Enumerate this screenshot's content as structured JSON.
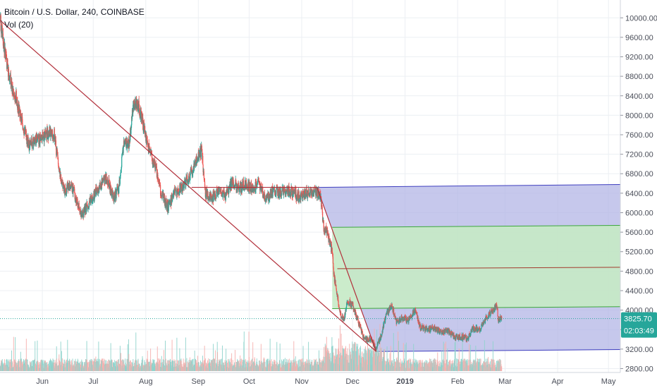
{
  "legend": {
    "symbol_line": "Bitcoin / U.S. Dollar, 240, COINBASE",
    "indicator_line": "Vol (20)"
  },
  "price_label": {
    "value": "3825.70",
    "countdown": "02:03:49",
    "color": "#26a69a"
  },
  "colors": {
    "up": "#26a69a",
    "down": "#ef5350",
    "grid": "#eceff3",
    "trendline": "#b2303b",
    "channel_line": "#3f3fbf",
    "channel_fill": "#b3b6e6",
    "green_zone_fill": "#c5eac5",
    "green_line": "#3ca73c",
    "mid_line": "#a33a2c",
    "vol_up": "#8fd3cc",
    "vol_down": "#f5b0ae"
  },
  "chart_data": {
    "type": "candlestick",
    "title": "Bitcoin / U.S. Dollar, 240, COINBASE",
    "indicator": "Vol (20)",
    "y_axis": {
      "ticks": [
        2800,
        3200,
        3600,
        4000,
        4400,
        4800,
        5200,
        5600,
        6000,
        6400,
        6800,
        7200,
        7600,
        8000,
        8400,
        8800,
        9200,
        9600,
        10000
      ],
      "tick_labels": [
        "2800.00",
        "3200.00",
        "3600.00",
        "4000.00",
        "4400.00",
        "4800.00",
        "5200.00",
        "5600.00",
        "6000.00",
        "6400.00",
        "6800.00",
        "7200.00",
        "7600.00",
        "8000.00",
        "8400.00",
        "8800.00",
        "9200.00",
        "9600.00",
        "10000.00"
      ],
      "range": [
        2720,
        10250
      ]
    },
    "x_axis": {
      "labels": [
        "Jun",
        "Jul",
        "Aug",
        "Sep",
        "Oct",
        "Nov",
        "Dec",
        "2019",
        "Feb",
        "Mar",
        "Apr",
        "May"
      ],
      "label_dates": [
        "2018-06-01",
        "2018-07-01",
        "2018-08-01",
        "2018-09-01",
        "2018-10-01",
        "2018-11-01",
        "2018-12-01",
        "2019-01-01",
        "2019-02-01",
        "2019-03-01",
        "2019-04-01",
        "2019-05-01"
      ],
      "range": [
        "2018-05-07",
        "2019-05-08"
      ]
    },
    "price_path": [
      [
        "2018-05-07",
        9950
      ],
      [
        "2018-05-10",
        9300
      ],
      [
        "2018-05-13",
        8700
      ],
      [
        "2018-05-17",
        8300
      ],
      [
        "2018-05-21",
        7700
      ],
      [
        "2018-05-24",
        7400
      ],
      [
        "2018-05-28",
        7500
      ],
      [
        "2018-06-01",
        7550
      ],
      [
        "2018-06-05",
        7650
      ],
      [
        "2018-06-08",
        7600
      ],
      [
        "2018-06-11",
        6850
      ],
      [
        "2018-06-14",
        6450
      ],
      [
        "2018-06-18",
        6600
      ],
      [
        "2018-06-22",
        6150
      ],
      [
        "2018-06-24",
        5950
      ],
      [
        "2018-06-27",
        6100
      ],
      [
        "2018-07-01",
        6350
      ],
      [
        "2018-07-05",
        6550
      ],
      [
        "2018-07-09",
        6700
      ],
      [
        "2018-07-13",
        6300
      ],
      [
        "2018-07-16",
        6500
      ],
      [
        "2018-07-19",
        7400
      ],
      [
        "2018-07-22",
        7400
      ],
      [
        "2018-07-25",
        8300
      ],
      [
        "2018-07-28",
        8200
      ],
      [
        "2018-07-31",
        7700
      ],
      [
        "2018-08-03",
        7300
      ],
      [
        "2018-08-07",
        6900
      ],
      [
        "2018-08-10",
        6400
      ],
      [
        "2018-08-14",
        6100
      ],
      [
        "2018-08-18",
        6400
      ],
      [
        "2018-08-22",
        6500
      ],
      [
        "2018-08-26",
        6700
      ],
      [
        "2018-08-30",
        7000
      ],
      [
        "2018-09-03",
        7300
      ],
      [
        "2018-09-05",
        6400
      ],
      [
        "2018-09-09",
        6300
      ],
      [
        "2018-09-13",
        6450
      ],
      [
        "2018-09-17",
        6350
      ],
      [
        "2018-09-21",
        6650
      ],
      [
        "2018-09-25",
        6500
      ],
      [
        "2018-09-29",
        6600
      ],
      [
        "2018-10-03",
        6500
      ],
      [
        "2018-10-07",
        6600
      ],
      [
        "2018-10-11",
        6250
      ],
      [
        "2018-10-15",
        6450
      ],
      [
        "2018-10-19",
        6400
      ],
      [
        "2018-10-23",
        6450
      ],
      [
        "2018-10-27",
        6420
      ],
      [
        "2018-10-31",
        6300
      ],
      [
        "2018-11-04",
        6400
      ],
      [
        "2018-11-08",
        6450
      ],
      [
        "2018-11-12",
        6350
      ],
      [
        "2018-11-14",
        5700
      ],
      [
        "2018-11-16",
        5600
      ],
      [
        "2018-11-19",
        5200
      ],
      [
        "2018-11-20",
        4700
      ],
      [
        "2018-11-22",
        4300
      ],
      [
        "2018-11-24",
        3900
      ],
      [
        "2018-11-26",
        3800
      ],
      [
        "2018-11-28",
        4200
      ],
      [
        "2018-12-01",
        4100
      ],
      [
        "2018-12-04",
        3800
      ],
      [
        "2018-12-08",
        3400
      ],
      [
        "2018-12-12",
        3400
      ],
      [
        "2018-12-15",
        3200
      ],
      [
        "2018-12-18",
        3500
      ],
      [
        "2018-12-21",
        3900
      ],
      [
        "2018-12-24",
        4100
      ],
      [
        "2018-12-27",
        3750
      ],
      [
        "2018-12-30",
        3850
      ],
      [
        "2019-01-03",
        3800
      ],
      [
        "2019-01-07",
        4000
      ],
      [
        "2019-01-10",
        3650
      ],
      [
        "2019-01-14",
        3600
      ],
      [
        "2019-01-18",
        3650
      ],
      [
        "2019-01-22",
        3550
      ],
      [
        "2019-01-26",
        3580
      ],
      [
        "2019-01-30",
        3450
      ],
      [
        "2019-02-03",
        3450
      ],
      [
        "2019-02-07",
        3420
      ],
      [
        "2019-02-10",
        3620
      ],
      [
        "2019-02-14",
        3600
      ],
      [
        "2019-02-18",
        3850
      ],
      [
        "2019-02-20",
        3950
      ],
      [
        "2019-02-22",
        3980
      ],
      [
        "2019-02-24",
        4150
      ],
      [
        "2019-02-25",
        3800
      ],
      [
        "2019-02-27",
        3830
      ]
    ],
    "current_price": 3825.7,
    "drawings": {
      "trendline": {
        "from": [
          "2018-05-07",
          9950
        ],
        "to": [
          "2018-12-15",
          3150
        ]
      },
      "range_line": {
        "from": [
          "2018-08-28",
          6520
        ],
        "to": [
          "2018-11-10",
          6520
        ]
      },
      "drop_line": {
        "from": [
          "2018-11-10",
          6520
        ],
        "to": [
          "2018-12-15",
          3150
        ]
      },
      "channel": {
        "start": "2018-11-10",
        "end": "2019-05-08",
        "top": [
          6520,
          6580
        ],
        "bottom_start": "2018-12-15",
        "bottom": [
          3150,
          3190
        ]
      },
      "green_zone": {
        "start": "2018-11-19",
        "end": "2019-05-08",
        "top": [
          5700,
          5740
        ],
        "bottom": [
          4030,
          4070
        ]
      },
      "mid_line": {
        "start": "2018-11-22",
        "end": "2019-05-08",
        "value": [
          4850,
          4880
        ]
      }
    }
  }
}
